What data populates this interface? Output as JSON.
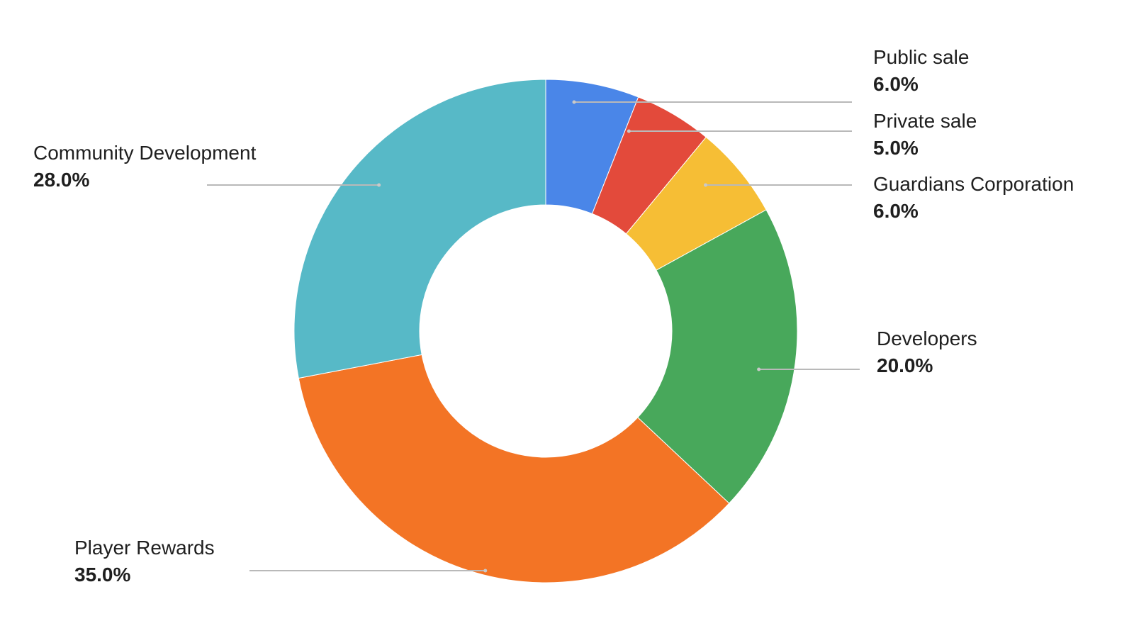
{
  "chart_data": {
    "type": "pie",
    "variant": "donut",
    "title": "",
    "slices": [
      {
        "label": "Public sale",
        "value": 6.0,
        "display": "6.0%",
        "color": "#4a86e8"
      },
      {
        "label": "Private sale",
        "value": 5.0,
        "display": "5.0%",
        "color": "#e34a3b"
      },
      {
        "label": "Guardians Corporation",
        "value": 6.0,
        "display": "6.0%",
        "color": "#f6be35"
      },
      {
        "label": "Developers",
        "value": 20.0,
        "display": "20.0%",
        "color": "#48a85b"
      },
      {
        "label": "Player Rewards",
        "value": 35.0,
        "display": "35.0%",
        "color": "#f37425"
      },
      {
        "label": "Community Development",
        "value": 28.0,
        "display": "28.0%",
        "color": "#57b9c7"
      }
    ],
    "start_angle": "12 o'clock",
    "direction": "clockwise",
    "legend": "none",
    "labels": "outside with leader lines"
  }
}
